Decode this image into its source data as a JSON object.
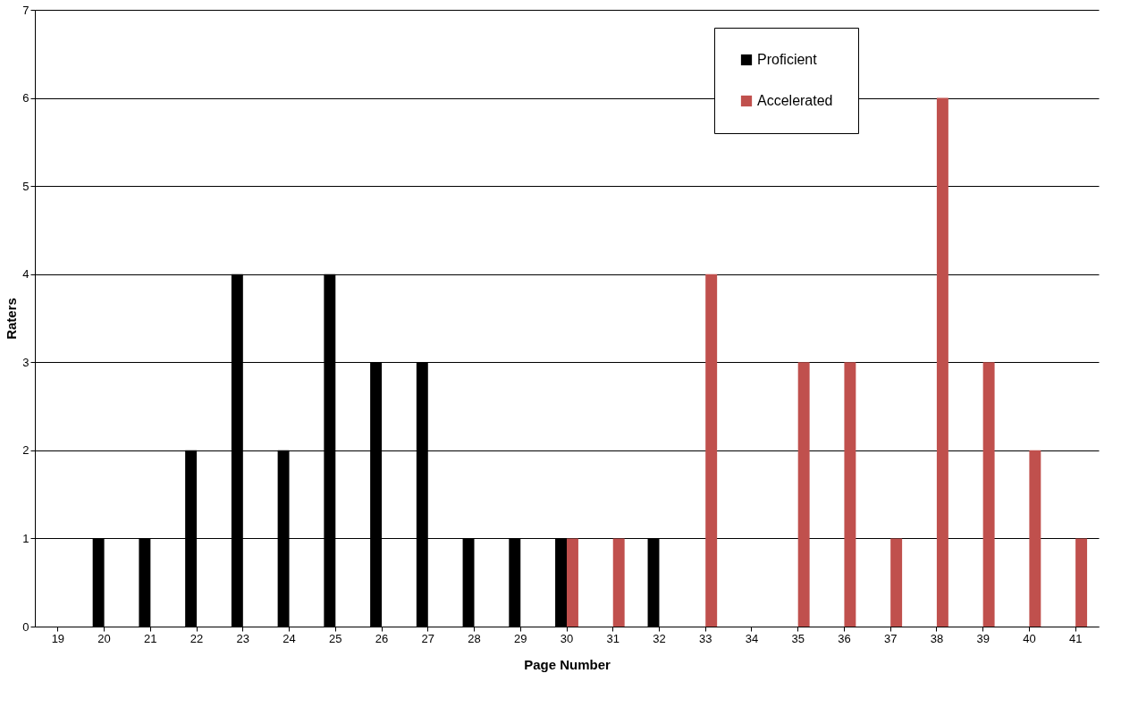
{
  "chart_data": {
    "type": "bar",
    "xlabel": "Page Number",
    "ylabel": "Raters",
    "categories": [
      "19",
      "20",
      "21",
      "22",
      "23",
      "24",
      "25",
      "26",
      "27",
      "28",
      "29",
      "30",
      "31",
      "32",
      "33",
      "34",
      "35",
      "36",
      "37",
      "38",
      "39",
      "40",
      "41"
    ],
    "series": [
      {
        "name": "Proficient",
        "color": "#000000",
        "values": [
          0,
          1,
          1,
          2,
          4,
          2,
          4,
          3,
          3,
          1,
          1,
          1,
          0,
          1,
          0,
          0,
          0,
          0,
          0,
          0,
          0,
          0,
          0
        ]
      },
      {
        "name": "Accelerated",
        "color": "#c0504d",
        "values": [
          0,
          0,
          0,
          0,
          0,
          0,
          0,
          0,
          0,
          0,
          0,
          1,
          1,
          0,
          4,
          0,
          3,
          3,
          1,
          6,
          3,
          2,
          1
        ]
      }
    ],
    "ylim": [
      0,
      7
    ],
    "yticks": [
      0,
      1,
      2,
      3,
      4,
      5,
      6,
      7
    ],
    "grid": "y",
    "legend": "top right"
  }
}
